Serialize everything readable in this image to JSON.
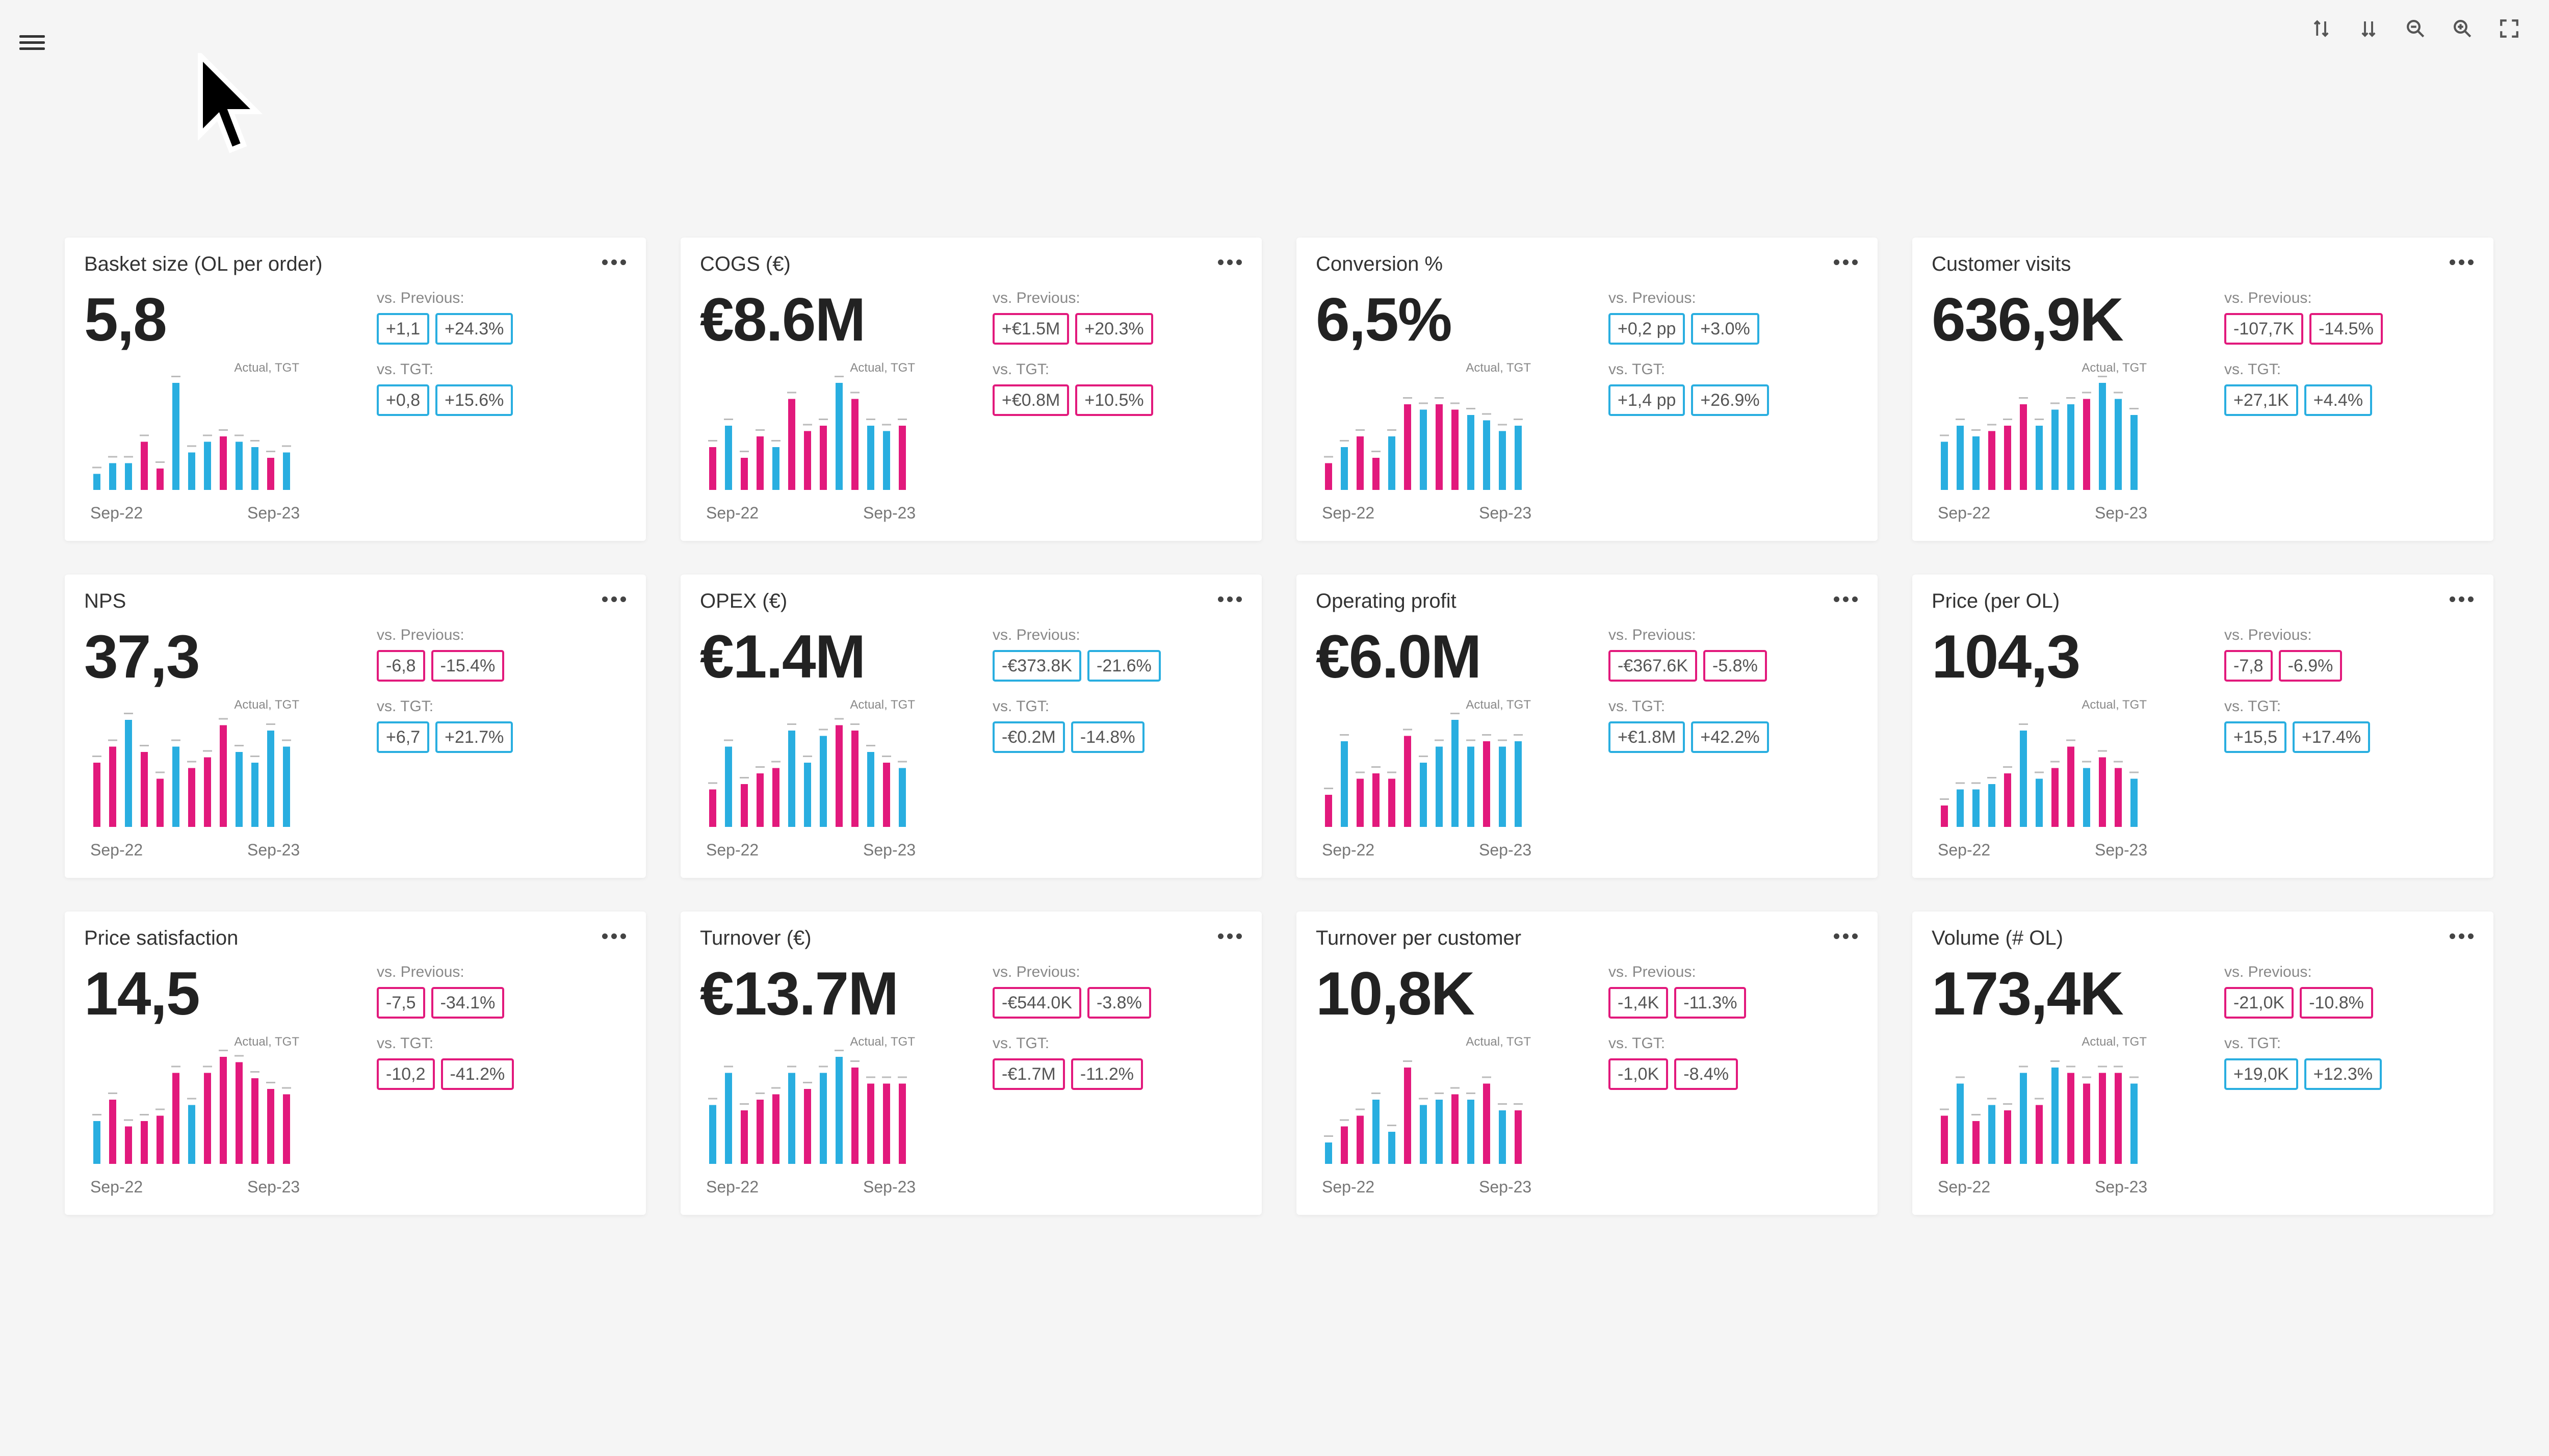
{
  "colors": {
    "blue": "#29aee0",
    "pink": "#e2197c",
    "bg": "#f5f5f5"
  },
  "toolbar": [
    "sort-ascending-icon",
    "sort-descending-icon",
    "zoom-out-icon",
    "zoom-in-icon",
    "fullscreen-icon"
  ],
  "cards": [
    {
      "title": "Basket size (OL per order)",
      "value": "5,8",
      "prev_label": "vs. Previous:",
      "prev": [
        {
          "t": "+1,1",
          "c": "blue"
        },
        {
          "t": "+24.3%",
          "c": "blue"
        }
      ],
      "tgt_label": "vs. TGT:",
      "tgt": [
        {
          "t": "+0,8",
          "c": "blue"
        },
        {
          "t": "+15.6%",
          "c": "blue"
        }
      ],
      "legend": "Actual, TGT",
      "x_start": "Sep-22",
      "x_end": "Sep-23",
      "bars": [
        {
          "v": 0.15,
          "c": "b"
        },
        {
          "v": 0.25,
          "c": "b"
        },
        {
          "v": 0.25,
          "c": "b"
        },
        {
          "v": 0.45,
          "c": "p"
        },
        {
          "v": 0.2,
          "c": "p"
        },
        {
          "v": 1.0,
          "c": "b"
        },
        {
          "v": 0.35,
          "c": "b"
        },
        {
          "v": 0.45,
          "c": "b"
        },
        {
          "v": 0.5,
          "c": "p"
        },
        {
          "v": 0.45,
          "c": "b"
        },
        {
          "v": 0.4,
          "c": "b"
        },
        {
          "v": 0.3,
          "c": "p"
        },
        {
          "v": 0.35,
          "c": "b"
        }
      ]
    },
    {
      "title": "COGS (€)",
      "value": "€8.6M",
      "prev_label": "vs. Previous:",
      "prev": [
        {
          "t": "+€1.5M",
          "c": "pink"
        },
        {
          "t": "+20.3%",
          "c": "pink"
        }
      ],
      "tgt_label": "vs. TGT:",
      "tgt": [
        {
          "t": "+€0.8M",
          "c": "pink"
        },
        {
          "t": "+10.5%",
          "c": "pink"
        }
      ],
      "legend": "Actual, TGT",
      "x_start": "Sep-22",
      "x_end": "Sep-23",
      "bars": [
        {
          "v": 0.4,
          "c": "p"
        },
        {
          "v": 0.6,
          "c": "b"
        },
        {
          "v": 0.3,
          "c": "p"
        },
        {
          "v": 0.5,
          "c": "p"
        },
        {
          "v": 0.4,
          "c": "b"
        },
        {
          "v": 0.85,
          "c": "p"
        },
        {
          "v": 0.55,
          "c": "p"
        },
        {
          "v": 0.6,
          "c": "p"
        },
        {
          "v": 1.0,
          "c": "b"
        },
        {
          "v": 0.85,
          "c": "p"
        },
        {
          "v": 0.6,
          "c": "b"
        },
        {
          "v": 0.55,
          "c": "b"
        },
        {
          "v": 0.6,
          "c": "p"
        }
      ]
    },
    {
      "title": "Conversion %",
      "value": "6,5%",
      "prev_label": "vs. Previous:",
      "prev": [
        {
          "t": "+0,2 pp",
          "c": "blue"
        },
        {
          "t": "+3.0%",
          "c": "blue"
        }
      ],
      "tgt_label": "vs. TGT:",
      "tgt": [
        {
          "t": "+1,4 pp",
          "c": "blue"
        },
        {
          "t": "+26.9%",
          "c": "blue"
        }
      ],
      "legend": "Actual, TGT",
      "x_start": "Sep-22",
      "x_end": "Sep-23",
      "bars": [
        {
          "v": 0.25,
          "c": "p"
        },
        {
          "v": 0.4,
          "c": "b"
        },
        {
          "v": 0.5,
          "c": "p"
        },
        {
          "v": 0.3,
          "c": "p"
        },
        {
          "v": 0.5,
          "c": "b"
        },
        {
          "v": 0.8,
          "c": "p"
        },
        {
          "v": 0.75,
          "c": "b"
        },
        {
          "v": 0.8,
          "c": "p"
        },
        {
          "v": 0.75,
          "c": "p"
        },
        {
          "v": 0.7,
          "c": "b"
        },
        {
          "v": 0.65,
          "c": "b"
        },
        {
          "v": 0.55,
          "c": "b"
        },
        {
          "v": 0.6,
          "c": "b"
        }
      ]
    },
    {
      "title": "Customer visits",
      "value": "636,9K",
      "prev_label": "vs. Previous:",
      "prev": [
        {
          "t": "-107,7K",
          "c": "pink"
        },
        {
          "t": "-14.5%",
          "c": "pink"
        }
      ],
      "tgt_label": "vs. TGT:",
      "tgt": [
        {
          "t": "+27,1K",
          "c": "blue"
        },
        {
          "t": "+4.4%",
          "c": "blue"
        }
      ],
      "legend": "Actual, TGT",
      "x_start": "Sep-22",
      "x_end": "Sep-23",
      "bars": [
        {
          "v": 0.45,
          "c": "b"
        },
        {
          "v": 0.6,
          "c": "b"
        },
        {
          "v": 0.5,
          "c": "b"
        },
        {
          "v": 0.55,
          "c": "p"
        },
        {
          "v": 0.6,
          "c": "p"
        },
        {
          "v": 0.8,
          "c": "p"
        },
        {
          "v": 0.6,
          "c": "b"
        },
        {
          "v": 0.75,
          "c": "b"
        },
        {
          "v": 0.8,
          "c": "b"
        },
        {
          "v": 0.85,
          "c": "p"
        },
        {
          "v": 1.0,
          "c": "b"
        },
        {
          "v": 0.85,
          "c": "b"
        },
        {
          "v": 0.7,
          "c": "b"
        }
      ]
    },
    {
      "title": "NPS",
      "value": "37,3",
      "prev_label": "vs. Previous:",
      "prev": [
        {
          "t": "-6,8",
          "c": "pink"
        },
        {
          "t": "-15.4%",
          "c": "pink"
        }
      ],
      "tgt_label": "vs. TGT:",
      "tgt": [
        {
          "t": "+6,7",
          "c": "blue"
        },
        {
          "t": "+21.7%",
          "c": "blue"
        }
      ],
      "legend": "Actual, TGT",
      "x_start": "Sep-22",
      "x_end": "Sep-23",
      "bars": [
        {
          "v": 0.6,
          "c": "p"
        },
        {
          "v": 0.75,
          "c": "p"
        },
        {
          "v": 1.0,
          "c": "b"
        },
        {
          "v": 0.7,
          "c": "p"
        },
        {
          "v": 0.45,
          "c": "p"
        },
        {
          "v": 0.75,
          "c": "b"
        },
        {
          "v": 0.55,
          "c": "p"
        },
        {
          "v": 0.65,
          "c": "p"
        },
        {
          "v": 0.95,
          "c": "p"
        },
        {
          "v": 0.7,
          "c": "b"
        },
        {
          "v": 0.6,
          "c": "b"
        },
        {
          "v": 0.9,
          "c": "b"
        },
        {
          "v": 0.75,
          "c": "b"
        }
      ]
    },
    {
      "title": "OPEX (€)",
      "value": "€1.4M",
      "prev_label": "vs. Previous:",
      "prev": [
        {
          "t": "-€373.8K",
          "c": "blue"
        },
        {
          "t": "-21.6%",
          "c": "blue"
        }
      ],
      "tgt_label": "vs. TGT:",
      "tgt": [
        {
          "t": "-€0.2M",
          "c": "blue"
        },
        {
          "t": "-14.8%",
          "c": "blue"
        }
      ],
      "legend": "Actual, TGT",
      "x_start": "Sep-22",
      "x_end": "Sep-23",
      "bars": [
        {
          "v": 0.35,
          "c": "p"
        },
        {
          "v": 0.75,
          "c": "b"
        },
        {
          "v": 0.4,
          "c": "p"
        },
        {
          "v": 0.5,
          "c": "p"
        },
        {
          "v": 0.55,
          "c": "p"
        },
        {
          "v": 0.9,
          "c": "b"
        },
        {
          "v": 0.6,
          "c": "b"
        },
        {
          "v": 0.85,
          "c": "b"
        },
        {
          "v": 0.95,
          "c": "p"
        },
        {
          "v": 0.9,
          "c": "p"
        },
        {
          "v": 0.7,
          "c": "b"
        },
        {
          "v": 0.6,
          "c": "p"
        },
        {
          "v": 0.55,
          "c": "b"
        }
      ]
    },
    {
      "title": "Operating profit",
      "value": "€6.0M",
      "prev_label": "vs. Previous:",
      "prev": [
        {
          "t": "-€367.6K",
          "c": "pink"
        },
        {
          "t": "-5.8%",
          "c": "pink"
        }
      ],
      "tgt_label": "vs. TGT:",
      "tgt": [
        {
          "t": "+€1.8M",
          "c": "blue"
        },
        {
          "t": "+42.2%",
          "c": "blue"
        }
      ],
      "legend": "Actual, TGT",
      "x_start": "Sep-22",
      "x_end": "Sep-23",
      "bars": [
        {
          "v": 0.3,
          "c": "p"
        },
        {
          "v": 0.8,
          "c": "b"
        },
        {
          "v": 0.45,
          "c": "p"
        },
        {
          "v": 0.5,
          "c": "p"
        },
        {
          "v": 0.45,
          "c": "p"
        },
        {
          "v": 0.85,
          "c": "p"
        },
        {
          "v": 0.6,
          "c": "b"
        },
        {
          "v": 0.75,
          "c": "b"
        },
        {
          "v": 1.0,
          "c": "b"
        },
        {
          "v": 0.75,
          "c": "b"
        },
        {
          "v": 0.8,
          "c": "p"
        },
        {
          "v": 0.75,
          "c": "b"
        },
        {
          "v": 0.8,
          "c": "b"
        }
      ]
    },
    {
      "title": "Price (per OL)",
      "value": "104,3",
      "prev_label": "vs. Previous:",
      "prev": [
        {
          "t": "-7,8",
          "c": "pink"
        },
        {
          "t": "-6.9%",
          "c": "pink"
        }
      ],
      "tgt_label": "vs. TGT:",
      "tgt": [
        {
          "t": "+15,5",
          "c": "blue"
        },
        {
          "t": "+17.4%",
          "c": "blue"
        }
      ],
      "legend": "Actual, TGT",
      "x_start": "Sep-22",
      "x_end": "Sep-23",
      "bars": [
        {
          "v": 0.2,
          "c": "p"
        },
        {
          "v": 0.35,
          "c": "b"
        },
        {
          "v": 0.35,
          "c": "b"
        },
        {
          "v": 0.4,
          "c": "b"
        },
        {
          "v": 0.5,
          "c": "p"
        },
        {
          "v": 0.9,
          "c": "b"
        },
        {
          "v": 0.45,
          "c": "b"
        },
        {
          "v": 0.55,
          "c": "p"
        },
        {
          "v": 0.75,
          "c": "p"
        },
        {
          "v": 0.55,
          "c": "b"
        },
        {
          "v": 0.65,
          "c": "p"
        },
        {
          "v": 0.55,
          "c": "p"
        },
        {
          "v": 0.45,
          "c": "b"
        }
      ]
    },
    {
      "title": "Price satisfaction",
      "value": "14,5",
      "prev_label": "vs. Previous:",
      "prev": [
        {
          "t": "-7,5",
          "c": "pink"
        },
        {
          "t": "-34.1%",
          "c": "pink"
        }
      ],
      "tgt_label": "vs. TGT:",
      "tgt": [
        {
          "t": "-10,2",
          "c": "pink"
        },
        {
          "t": "-41.2%",
          "c": "pink"
        }
      ],
      "legend": "Actual, TGT",
      "x_start": "Sep-22",
      "x_end": "Sep-23",
      "bars": [
        {
          "v": 0.4,
          "c": "b"
        },
        {
          "v": 0.6,
          "c": "p"
        },
        {
          "v": 0.35,
          "c": "p"
        },
        {
          "v": 0.4,
          "c": "p"
        },
        {
          "v": 0.45,
          "c": "p"
        },
        {
          "v": 0.85,
          "c": "p"
        },
        {
          "v": 0.55,
          "c": "b"
        },
        {
          "v": 0.85,
          "c": "p"
        },
        {
          "v": 1.0,
          "c": "p"
        },
        {
          "v": 0.95,
          "c": "p"
        },
        {
          "v": 0.8,
          "c": "p"
        },
        {
          "v": 0.7,
          "c": "p"
        },
        {
          "v": 0.65,
          "c": "p"
        }
      ]
    },
    {
      "title": "Turnover (€)",
      "value": "€13.7M",
      "prev_label": "vs. Previous:",
      "prev": [
        {
          "t": "-€544.0K",
          "c": "pink"
        },
        {
          "t": "-3.8%",
          "c": "pink"
        }
      ],
      "tgt_label": "vs. TGT:",
      "tgt": [
        {
          "t": "-€1.7M",
          "c": "pink"
        },
        {
          "t": "-11.2%",
          "c": "pink"
        }
      ],
      "legend": "Actual, TGT",
      "x_start": "Sep-22",
      "x_end": "Sep-23",
      "bars": [
        {
          "v": 0.55,
          "c": "b"
        },
        {
          "v": 0.85,
          "c": "b"
        },
        {
          "v": 0.5,
          "c": "p"
        },
        {
          "v": 0.6,
          "c": "p"
        },
        {
          "v": 0.65,
          "c": "p"
        },
        {
          "v": 0.85,
          "c": "b"
        },
        {
          "v": 0.7,
          "c": "p"
        },
        {
          "v": 0.85,
          "c": "b"
        },
        {
          "v": 1.0,
          "c": "b"
        },
        {
          "v": 0.9,
          "c": "p"
        },
        {
          "v": 0.75,
          "c": "p"
        },
        {
          "v": 0.75,
          "c": "p"
        },
        {
          "v": 0.75,
          "c": "p"
        }
      ]
    },
    {
      "title": "Turnover per customer",
      "value": "10,8K",
      "prev_label": "vs. Previous:",
      "prev": [
        {
          "t": "-1,4K",
          "c": "pink"
        },
        {
          "t": "-11.3%",
          "c": "pink"
        }
      ],
      "tgt_label": "vs. TGT:",
      "tgt": [
        {
          "t": "-1,0K",
          "c": "pink"
        },
        {
          "t": "-8.4%",
          "c": "pink"
        }
      ],
      "legend": "Actual, TGT",
      "x_start": "Sep-22",
      "x_end": "Sep-23",
      "bars": [
        {
          "v": 0.2,
          "c": "b"
        },
        {
          "v": 0.35,
          "c": "p"
        },
        {
          "v": 0.45,
          "c": "p"
        },
        {
          "v": 0.6,
          "c": "b"
        },
        {
          "v": 0.3,
          "c": "b"
        },
        {
          "v": 0.9,
          "c": "p"
        },
        {
          "v": 0.55,
          "c": "b"
        },
        {
          "v": 0.6,
          "c": "b"
        },
        {
          "v": 0.65,
          "c": "p"
        },
        {
          "v": 0.6,
          "c": "b"
        },
        {
          "v": 0.75,
          "c": "p"
        },
        {
          "v": 0.5,
          "c": "b"
        },
        {
          "v": 0.5,
          "c": "p"
        }
      ]
    },
    {
      "title": "Volume (# OL)",
      "value": "173,4K",
      "prev_label": "vs. Previous:",
      "prev": [
        {
          "t": "-21,0K",
          "c": "pink"
        },
        {
          "t": "-10.8%",
          "c": "pink"
        }
      ],
      "tgt_label": "vs. TGT:",
      "tgt": [
        {
          "t": "+19,0K",
          "c": "blue"
        },
        {
          "t": "+12.3%",
          "c": "blue"
        }
      ],
      "legend": "Actual, TGT",
      "x_start": "Sep-22",
      "x_end": "Sep-23",
      "bars": [
        {
          "v": 0.45,
          "c": "p"
        },
        {
          "v": 0.75,
          "c": "b"
        },
        {
          "v": 0.4,
          "c": "p"
        },
        {
          "v": 0.55,
          "c": "b"
        },
        {
          "v": 0.5,
          "c": "p"
        },
        {
          "v": 0.85,
          "c": "b"
        },
        {
          "v": 0.55,
          "c": "p"
        },
        {
          "v": 0.9,
          "c": "b"
        },
        {
          "v": 0.85,
          "c": "p"
        },
        {
          "v": 0.75,
          "c": "p"
        },
        {
          "v": 0.85,
          "c": "p"
        },
        {
          "v": 0.85,
          "c": "p"
        },
        {
          "v": 0.75,
          "c": "b"
        }
      ]
    }
  ]
}
